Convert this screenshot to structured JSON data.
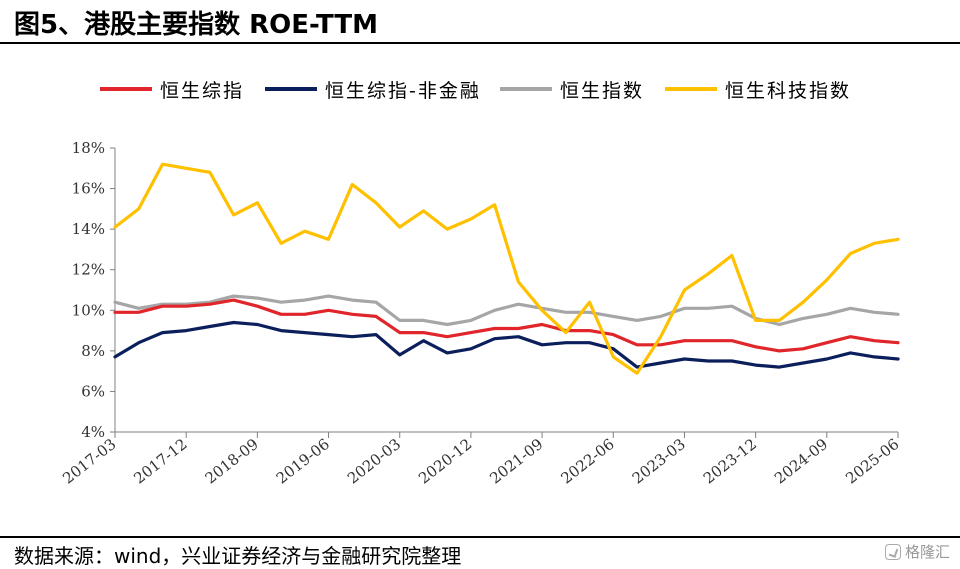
{
  "header": {
    "title": "图5、港股主要指数 ROE-TTM"
  },
  "footer": {
    "source": "数据来源：wind，兴业证券经济与金融研究院整理",
    "watermark": "格隆汇"
  },
  "colors": {
    "hsi_composite": "#E0262B",
    "hsi_composite_ex_fin": "#0B1F5C",
    "hsi": "#A6A6A6",
    "hstech": "#FFC000"
  },
  "chart_data": {
    "type": "line",
    "title": "",
    "xlabel": "",
    "ylabel": "",
    "ylim": [
      0.04,
      0.18
    ],
    "yticks": [
      "4%",
      "6%",
      "8%",
      "10%",
      "12%",
      "14%",
      "16%",
      "18%"
    ],
    "x_tick_labels": [
      "2017-03",
      "2017-12",
      "2018-09",
      "2019-06",
      "2020-03",
      "2020-12",
      "2021-09",
      "2022-06",
      "2023-03",
      "2023-12",
      "2024-09",
      "2025-06"
    ],
    "x": [
      "2017-03",
      "2017-06",
      "2017-09",
      "2017-12",
      "2018-03",
      "2018-06",
      "2018-09",
      "2018-12",
      "2019-03",
      "2019-06",
      "2019-09",
      "2019-12",
      "2020-03",
      "2020-06",
      "2020-09",
      "2020-12",
      "2021-03",
      "2021-06",
      "2021-09",
      "2021-12",
      "2022-03",
      "2022-06",
      "2022-09",
      "2022-12",
      "2023-03",
      "2023-06",
      "2023-09",
      "2023-12",
      "2024-03",
      "2024-06",
      "2024-09",
      "2024-12",
      "2025-03",
      "2025-06"
    ],
    "legend_position": "top",
    "grid": false,
    "series": [
      {
        "key": "hsi_composite",
        "name": "恒生综指",
        "values": [
          0.099,
          0.099,
          0.102,
          0.102,
          0.103,
          0.105,
          0.102,
          0.098,
          0.098,
          0.1,
          0.098,
          0.097,
          0.089,
          0.089,
          0.087,
          0.089,
          0.091,
          0.091,
          0.093,
          0.09,
          0.09,
          0.088,
          0.083,
          0.083,
          0.085,
          0.085,
          0.085,
          0.082,
          0.08,
          0.081,
          0.084,
          0.087,
          0.085,
          0.084
        ]
      },
      {
        "key": "hsi_composite_ex_fin",
        "name": "恒生综指-非金融",
        "values": [
          0.077,
          0.084,
          0.089,
          0.09,
          0.092,
          0.094,
          0.093,
          0.09,
          0.089,
          0.088,
          0.087,
          0.088,
          0.078,
          0.085,
          0.079,
          0.081,
          0.086,
          0.087,
          0.083,
          0.084,
          0.084,
          0.081,
          0.072,
          0.074,
          0.076,
          0.075,
          0.075,
          0.073,
          0.072,
          0.074,
          0.076,
          0.079,
          0.077,
          0.076
        ]
      },
      {
        "key": "hsi",
        "name": "恒生指数",
        "values": [
          0.104,
          0.101,
          0.103,
          0.103,
          0.104,
          0.107,
          0.106,
          0.104,
          0.105,
          0.107,
          0.105,
          0.104,
          0.095,
          0.095,
          0.093,
          0.095,
          0.1,
          0.103,
          0.101,
          0.099,
          0.099,
          0.097,
          0.095,
          0.097,
          0.101,
          0.101,
          0.102,
          0.096,
          0.093,
          0.096,
          0.098,
          0.101,
          0.099,
          0.098
        ]
      },
      {
        "key": "hstech",
        "name": "恒生科技指数",
        "values": [
          0.141,
          0.15,
          0.172,
          0.17,
          0.168,
          0.147,
          0.153,
          0.133,
          0.139,
          0.135,
          0.162,
          0.153,
          0.141,
          0.149,
          0.14,
          0.145,
          0.152,
          0.114,
          0.1,
          0.089,
          0.104,
          0.077,
          0.069,
          0.087,
          0.11,
          0.118,
          0.127,
          0.095,
          0.095,
          0.104,
          0.115,
          0.128,
          0.133,
          0.135
        ]
      }
    ]
  }
}
